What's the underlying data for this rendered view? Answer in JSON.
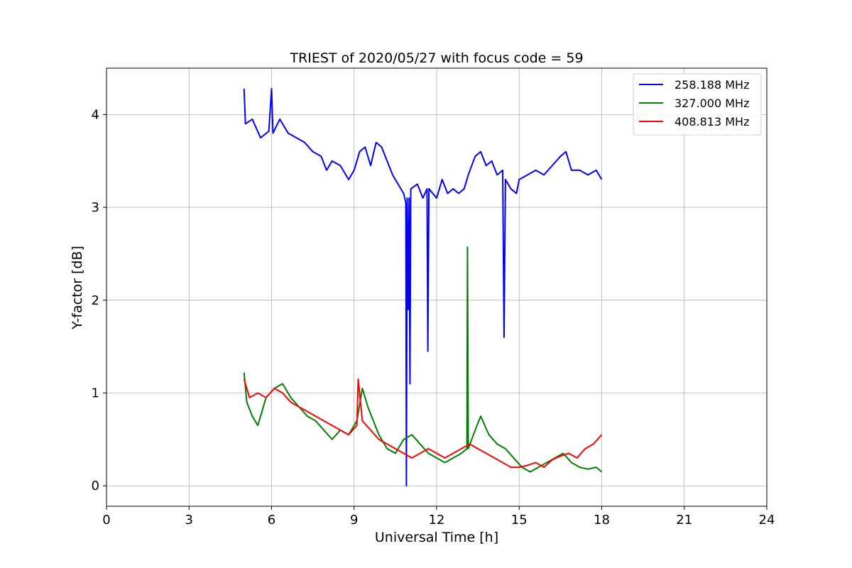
{
  "chart_data": {
    "type": "line",
    "title": "TRIEST of 2020/05/27 with focus code = 59",
    "xlabel": "Universal Time [h]",
    "ylabel": "Y-factor [dB]",
    "xlim": [
      0,
      24
    ],
    "ylim": [
      -0.22,
      4.5
    ],
    "xticks": [
      0,
      3,
      6,
      9,
      12,
      15,
      18,
      21,
      24
    ],
    "yticks": [
      0,
      1,
      2,
      3,
      4
    ],
    "grid": true,
    "legend_position": "top-right",
    "series": [
      {
        "name": "258.188 MHz",
        "color": "#0000ff",
        "points": [
          [
            5.0,
            4.28
          ],
          [
            5.05,
            3.9
          ],
          [
            5.3,
            3.95
          ],
          [
            5.6,
            3.75
          ],
          [
            5.9,
            3.82
          ],
          [
            6.0,
            4.28
          ],
          [
            6.05,
            3.8
          ],
          [
            6.3,
            3.95
          ],
          [
            6.6,
            3.8
          ],
          [
            6.9,
            3.75
          ],
          [
            7.2,
            3.7
          ],
          [
            7.5,
            3.6
          ],
          [
            7.8,
            3.55
          ],
          [
            8.0,
            3.4
          ],
          [
            8.2,
            3.5
          ],
          [
            8.5,
            3.45
          ],
          [
            8.8,
            3.3
          ],
          [
            9.0,
            3.4
          ],
          [
            9.2,
            3.6
          ],
          [
            9.4,
            3.65
          ],
          [
            9.6,
            3.45
          ],
          [
            9.8,
            3.7
          ],
          [
            10.0,
            3.65
          ],
          [
            10.2,
            3.5
          ],
          [
            10.4,
            3.35
          ],
          [
            10.6,
            3.25
          ],
          [
            10.8,
            3.15
          ],
          [
            10.88,
            3.05
          ],
          [
            10.9,
            0.0
          ],
          [
            10.93,
            3.1
          ],
          [
            10.97,
            1.9
          ],
          [
            11.0,
            3.1
          ],
          [
            11.03,
            1.1
          ],
          [
            11.06,
            3.2
          ],
          [
            11.3,
            3.25
          ],
          [
            11.5,
            3.1
          ],
          [
            11.65,
            3.2
          ],
          [
            11.68,
            1.45
          ],
          [
            11.72,
            3.2
          ],
          [
            12.0,
            3.1
          ],
          [
            12.2,
            3.3
          ],
          [
            12.4,
            3.15
          ],
          [
            12.6,
            3.2
          ],
          [
            12.8,
            3.15
          ],
          [
            13.0,
            3.2
          ],
          [
            13.15,
            3.35
          ],
          [
            13.4,
            3.55
          ],
          [
            13.6,
            3.6
          ],
          [
            13.8,
            3.45
          ],
          [
            14.0,
            3.5
          ],
          [
            14.2,
            3.35
          ],
          [
            14.4,
            3.4
          ],
          [
            14.45,
            1.6
          ],
          [
            14.5,
            3.3
          ],
          [
            14.7,
            3.2
          ],
          [
            14.9,
            3.15
          ],
          [
            15.0,
            3.3
          ],
          [
            15.3,
            3.35
          ],
          [
            15.6,
            3.4
          ],
          [
            15.9,
            3.35
          ],
          [
            16.2,
            3.45
          ],
          [
            16.5,
            3.55
          ],
          [
            16.7,
            3.6
          ],
          [
            16.9,
            3.4
          ],
          [
            17.2,
            3.4
          ],
          [
            17.5,
            3.35
          ],
          [
            17.8,
            3.4
          ],
          [
            18.0,
            3.3
          ]
        ]
      },
      {
        "name": "327.000 MHz",
        "color": "#008000",
        "points": [
          [
            5.0,
            1.22
          ],
          [
            5.1,
            0.9
          ],
          [
            5.3,
            0.75
          ],
          [
            5.5,
            0.65
          ],
          [
            5.8,
            0.95
          ],
          [
            6.1,
            1.05
          ],
          [
            6.4,
            1.1
          ],
          [
            6.7,
            0.95
          ],
          [
            7.0,
            0.85
          ],
          [
            7.3,
            0.75
          ],
          [
            7.6,
            0.7
          ],
          [
            7.9,
            0.6
          ],
          [
            8.2,
            0.5
          ],
          [
            8.5,
            0.6
          ],
          [
            8.8,
            0.55
          ],
          [
            9.1,
            0.7
          ],
          [
            9.3,
            1.05
          ],
          [
            9.5,
            0.85
          ],
          [
            9.7,
            0.7
          ],
          [
            9.9,
            0.55
          ],
          [
            10.2,
            0.4
          ],
          [
            10.5,
            0.35
          ],
          [
            10.8,
            0.5
          ],
          [
            11.1,
            0.55
          ],
          [
            11.4,
            0.45
          ],
          [
            11.7,
            0.35
          ],
          [
            12.0,
            0.3
          ],
          [
            12.3,
            0.25
          ],
          [
            12.6,
            0.3
          ],
          [
            12.9,
            0.35
          ],
          [
            13.1,
            0.4
          ],
          [
            13.12,
            2.57
          ],
          [
            13.15,
            0.4
          ],
          [
            13.4,
            0.6
          ],
          [
            13.6,
            0.75
          ],
          [
            13.9,
            0.55
          ],
          [
            14.2,
            0.45
          ],
          [
            14.5,
            0.4
          ],
          [
            14.8,
            0.3
          ],
          [
            15.1,
            0.2
          ],
          [
            15.4,
            0.15
          ],
          [
            15.7,
            0.2
          ],
          [
            16.0,
            0.25
          ],
          [
            16.3,
            0.3
          ],
          [
            16.6,
            0.35
          ],
          [
            16.9,
            0.25
          ],
          [
            17.2,
            0.2
          ],
          [
            17.5,
            0.18
          ],
          [
            17.8,
            0.2
          ],
          [
            18.0,
            0.15
          ]
        ]
      },
      {
        "name": "408.813 MHz",
        "color": "#ff0000",
        "points": [
          [
            5.0,
            1.15
          ],
          [
            5.2,
            0.95
          ],
          [
            5.5,
            1.0
          ],
          [
            5.8,
            0.95
          ],
          [
            6.1,
            1.05
          ],
          [
            6.4,
            1.0
          ],
          [
            6.7,
            0.9
          ],
          [
            7.0,
            0.85
          ],
          [
            7.3,
            0.8
          ],
          [
            7.6,
            0.75
          ],
          [
            7.9,
            0.7
          ],
          [
            8.2,
            0.65
          ],
          [
            8.5,
            0.6
          ],
          [
            8.8,
            0.55
          ],
          [
            9.1,
            0.65
          ],
          [
            9.15,
            1.15
          ],
          [
            9.3,
            0.7
          ],
          [
            9.6,
            0.6
          ],
          [
            9.9,
            0.5
          ],
          [
            10.2,
            0.45
          ],
          [
            10.5,
            0.4
          ],
          [
            10.8,
            0.35
          ],
          [
            11.1,
            0.3
          ],
          [
            11.4,
            0.35
          ],
          [
            11.7,
            0.4
          ],
          [
            12.0,
            0.35
          ],
          [
            12.3,
            0.3
          ],
          [
            12.6,
            0.35
          ],
          [
            12.9,
            0.4
          ],
          [
            13.2,
            0.45
          ],
          [
            13.5,
            0.4
          ],
          [
            13.8,
            0.35
          ],
          [
            14.1,
            0.3
          ],
          [
            14.4,
            0.25
          ],
          [
            14.7,
            0.2
          ],
          [
            15.0,
            0.2
          ],
          [
            15.3,
            0.22
          ],
          [
            15.6,
            0.25
          ],
          [
            15.9,
            0.2
          ],
          [
            16.2,
            0.28
          ],
          [
            16.5,
            0.32
          ],
          [
            16.8,
            0.35
          ],
          [
            17.1,
            0.3
          ],
          [
            17.4,
            0.4
          ],
          [
            17.7,
            0.45
          ],
          [
            18.0,
            0.55
          ]
        ]
      }
    ]
  }
}
